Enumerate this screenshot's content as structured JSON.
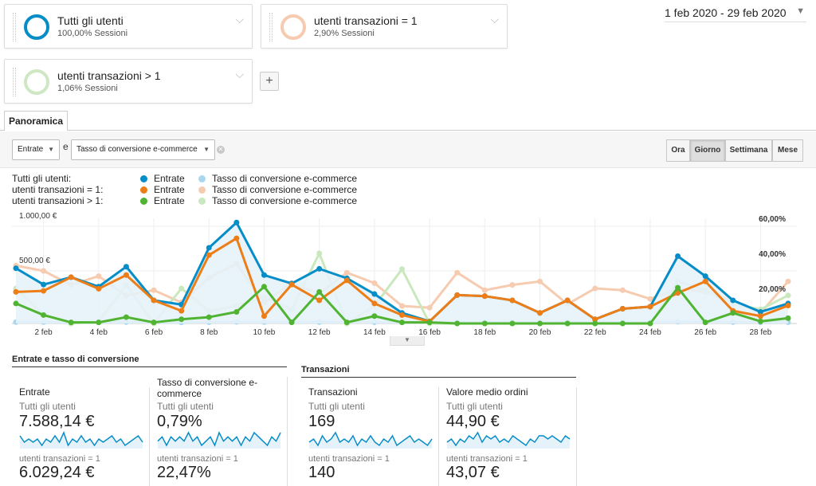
{
  "segments": [
    {
      "title": "Tutti gli utenti",
      "sessions": "100,00% Sessioni",
      "color": "#058dc7"
    },
    {
      "title": "utenti transazioni = 1",
      "sessions": "2,90% Sessioni",
      "color": "#f6cbb0"
    },
    {
      "title": "utenti transazioni > 1",
      "sessions": "1,06% Sessioni",
      "color": "#cde8c2"
    }
  ],
  "add_segment": "+",
  "date_range": "1 feb 2020 - 29 feb 2020",
  "tab": "Panoramica",
  "metric_primary": "Entrate",
  "conjunction": "e",
  "metric_secondary": "Tasso di conversione e-commerce",
  "granularity": [
    "Ora",
    "Giorno",
    "Settimana",
    "Mese"
  ],
  "granularity_active": "Giorno",
  "legend": {
    "rows": [
      {
        "segment": "Tutti gli utenti:",
        "m1": "Entrate",
        "m2": "Tasso di conversione e-commerce",
        "c1": "#058dc7",
        "c2": "#a7d8f0"
      },
      {
        "segment": "utenti transazioni = 1:",
        "m1": "Entrate",
        "m2": "Tasso di conversione e-commerce",
        "c1": "#ed7e17",
        "c2": "#f6cbb0"
      },
      {
        "segment": "utenti transazioni > 1:",
        "m1": "Entrate",
        "m2": "Tasso di conversione e-commerce",
        "c1": "#50b432",
        "c2": "#c9e8bd"
      }
    ]
  },
  "chart_data": {
    "type": "line",
    "x": [
      "1 feb",
      "2 feb",
      "3 feb",
      "4 feb",
      "5 feb",
      "6 feb",
      "7 feb",
      "8 feb",
      "9 feb",
      "10 feb",
      "11 feb",
      "12 feb",
      "13 feb",
      "14 feb",
      "15 feb",
      "16 feb",
      "17 feb",
      "18 feb",
      "19 feb",
      "20 feb",
      "21 feb",
      "22 feb",
      "23 feb",
      "24 feb",
      "25 feb",
      "26 feb",
      "27 feb",
      "28 feb",
      "29 feb"
    ],
    "x_tick_labels": [
      "2 feb",
      "4 feb",
      "6 feb",
      "8 feb",
      "10 feb",
      "12 feb",
      "14 feb",
      "16 feb",
      "18 feb",
      "20 feb",
      "22 feb",
      "24 feb",
      "26 feb",
      "28 feb"
    ],
    "y_left_labels": [
      "1.000,00 €",
      "500,00 €"
    ],
    "y_left_range": [
      0,
      1000
    ],
    "y_right_labels": [
      "60,00%",
      "40,00%",
      "20,00%"
    ],
    "y_right_range": [
      0,
      60
    ],
    "series": [
      {
        "name": "Tutti gli utenti: Entrate",
        "axis": "left",
        "color": "#058dc7",
        "area": true,
        "values": [
          525,
          370,
          440,
          350,
          540,
          220,
          180,
          720,
          960,
          460,
          380,
          520,
          430,
          280,
          100,
          20,
          270,
          260,
          220,
          100,
          220,
          40,
          140,
          160,
          640,
          450,
          220,
          110,
          190
        ]
      },
      {
        "name": "utenti transazioni = 1: Entrate",
        "axis": "left",
        "color": "#ed7e17",
        "values": [
          300,
          310,
          440,
          330,
          460,
          220,
          120,
          650,
          810,
          70,
          370,
          220,
          410,
          190,
          80,
          20,
          270,
          260,
          220,
          100,
          220,
          40,
          140,
          160,
          290,
          400,
          120,
          70,
          170
        ]
      },
      {
        "name": "utenti transazioni > 1: Entrate",
        "axis": "left",
        "color": "#50b432",
        "values": [
          190,
          80,
          10,
          10,
          60,
          10,
          40,
          60,
          110,
          350,
          10,
          300,
          10,
          70,
          10,
          10,
          0,
          0,
          0,
          0,
          0,
          0,
          0,
          0,
          340,
          10,
          100,
          20,
          50
        ]
      },
      {
        "name": "Tutti gli utenti: Tasso di conversione e-commerce",
        "axis": "right",
        "color": "#a7d8f0",
        "values": [
          0.8,
          0.8,
          0.5,
          0.6,
          0.8,
          0.6,
          0.6,
          0.7,
          0.9,
          0.8,
          0.8,
          0.8,
          0.7,
          0.7,
          0.6,
          0.6,
          0.7,
          0.7,
          0.7,
          0.6,
          0.8,
          0.6,
          0.7,
          0.7,
          1.0,
          0.9,
          0.8,
          0.6,
          0.7
        ]
      },
      {
        "name": "utenti transazioni = 1: Tasso di conversione e-commerce",
        "axis": "right",
        "color": "#f6cbb0",
        "values": [
          33,
          30,
          22,
          27,
          16,
          19,
          12,
          26,
          34,
          12,
          23,
          17,
          29,
          23,
          10,
          9,
          29,
          19,
          22,
          24,
          11,
          20,
          19,
          14,
          20,
          18,
          13,
          6,
          24
        ]
      },
      {
        "name": "utenti transazioni > 1: Tasso di conversione e-commerce",
        "axis": "right",
        "color": "#c9e8bd",
        "values": [
          20,
          5,
          0,
          1,
          22,
          0,
          20,
          7,
          10,
          15,
          8,
          40,
          0,
          10,
          31,
          0,
          0,
          0,
          0,
          0,
          0,
          0,
          0,
          0,
          24,
          19,
          11,
          8,
          16
        ]
      }
    ]
  },
  "sections": {
    "revenue_title": "Entrate e tasso di conversione",
    "transactions_title": "Transazioni"
  },
  "metric_cards": [
    {
      "name": "Entrate",
      "seg1": "Tutti gli utenti",
      "val1": "7.588,14 €",
      "seg2": "utenti transazioni = 1",
      "val2": "6.029,24 €",
      "spark": [
        6,
        4,
        5,
        4,
        5,
        3,
        5,
        4,
        6,
        4,
        7,
        3,
        5,
        4,
        6,
        4,
        5,
        3,
        5,
        4,
        5,
        6,
        4,
        5,
        3,
        4,
        5,
        6,
        4
      ]
    },
    {
      "name": "Tasso di conversione e-commerce",
      "seg1": "Tutti gli utenti",
      "val1": "0,79%",
      "seg2": "utenti transazioni = 1",
      "val2": "22,47%",
      "spark": [
        4,
        5,
        3,
        5,
        4,
        5,
        4,
        6,
        4,
        5,
        3,
        4,
        5,
        3,
        6,
        4,
        5,
        4,
        5,
        3,
        5,
        4,
        6,
        5,
        4,
        3,
        5,
        4,
        6
      ]
    },
    {
      "name": "Transazioni",
      "seg1": "Tutti gli utenti",
      "val1": "169",
      "seg2": "utenti transazioni = 1",
      "val2": "140",
      "spark": [
        4,
        5,
        3,
        6,
        4,
        5,
        7,
        4,
        5,
        4,
        6,
        3,
        5,
        4,
        6,
        4,
        3,
        5,
        4,
        6,
        3,
        4,
        5,
        6,
        4,
        5,
        4,
        3,
        5
      ]
    },
    {
      "name": "Valore medio ordini",
      "seg1": "Tutti gli utenti",
      "val1": "44,90 €",
      "seg2": "utenti transazioni = 1",
      "val2": "43,07 €",
      "spark": [
        4,
        5,
        3,
        5,
        4,
        6,
        5,
        7,
        4,
        6,
        5,
        6,
        4,
        5,
        4,
        6,
        5,
        4,
        3,
        5,
        4,
        6,
        6,
        5,
        6,
        5,
        4,
        6,
        5
      ]
    }
  ]
}
